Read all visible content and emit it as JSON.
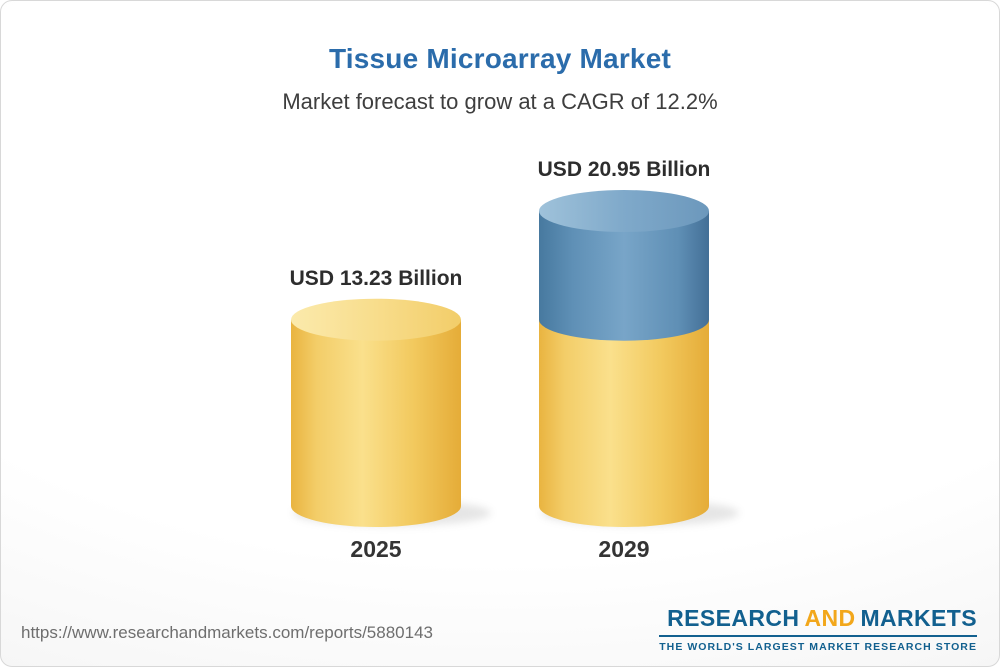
{
  "chart_data": {
    "type": "bar",
    "subtype": "3d-cylinder",
    "title": "Tissue Microarray Market",
    "subtitle": "Market forecast to grow at a CAGR of 12.2%",
    "cagr_percent": 12.2,
    "unit": "USD Billion",
    "categories": [
      "2025",
      "2029"
    ],
    "values": [
      13.23,
      20.95
    ],
    "value_labels": [
      "USD 13.23 Billion",
      "USD 20.95 Billion"
    ],
    "segments": [
      {
        "category": "2025",
        "base": 13.23,
        "growth": 0
      },
      {
        "category": "2029",
        "base": 13.23,
        "growth": 7.72
      }
    ],
    "ylim": [
      0,
      20.95
    ],
    "grid": false,
    "legend": "none",
    "colors": {
      "base_segment_yellow": "#F2C659",
      "growth_segment_blue": "#5E8FB8",
      "title_blue": "#2B6CAB",
      "text_dark": "#3E3E3E"
    }
  },
  "footer": {
    "url": "https://www.researchandmarkets.com/reports/5880143",
    "logo": {
      "research": "RESEARCH",
      "and": "AND",
      "markets": "MARKETS",
      "tagline": "THE WORLD'S LARGEST MARKET RESEARCH STORE"
    }
  }
}
